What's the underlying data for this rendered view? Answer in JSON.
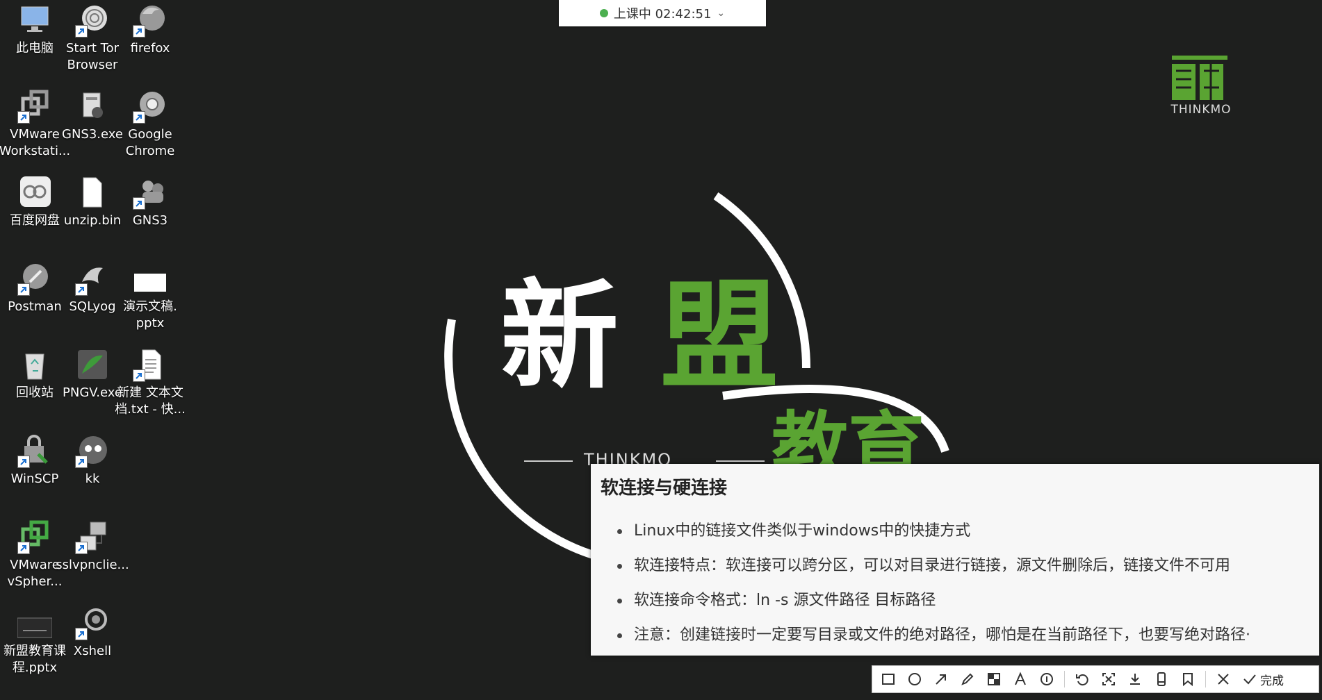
{
  "status_pill": {
    "text": "上课中 02:42:51"
  },
  "desktop_icons": [
    {
      "label": "此电脑",
      "icon": "computer-icon"
    },
    {
      "label": "Start Tor\nBrowser",
      "icon": "tor-icon"
    },
    {
      "label": "firefox",
      "icon": "firefox-icon"
    },
    {
      "label": "VMware\nWorkstati...",
      "icon": "vmware-icon"
    },
    {
      "label": "GNS3.exe",
      "icon": "installer-icon"
    },
    {
      "label": "Google\nChrome",
      "icon": "chrome-icon"
    },
    {
      "label": "百度网盘",
      "icon": "cloud-drive-icon"
    },
    {
      "label": "unzip.bin",
      "icon": "file-icon"
    },
    {
      "label": "GNS3",
      "icon": "gns3-icon"
    },
    {
      "label": "Postman",
      "icon": "postman-icon"
    },
    {
      "label": "SQLyog",
      "icon": "sqlyog-icon"
    },
    {
      "label": "演示文稿.\npptx",
      "icon": "pptx-icon"
    },
    {
      "label": "回收站",
      "icon": "recycle-bin-icon"
    },
    {
      "label": "PNGV.exe",
      "icon": "png-icon"
    },
    {
      "label": "新建 文本文\n档.txt - 快...",
      "icon": "text-file-icon"
    },
    {
      "label": "WinSCP",
      "icon": "winscp-icon"
    },
    {
      "label": "kk",
      "icon": "kk-icon"
    },
    {
      "label": "VMware\nvSpher...",
      "icon": "vsphere-icon"
    },
    {
      "label": "sslvpnclie...",
      "icon": "vpn-icon"
    },
    {
      "label": "新盟教育课\n程.pptx",
      "icon": "pptx-thumb-icon"
    },
    {
      "label": "Xshell",
      "icon": "xshell-icon"
    }
  ],
  "logo_small": {
    "text": "THINKMO"
  },
  "big_logo": {
    "char1": "新",
    "char2": "盟",
    "char3": "教育",
    "brand": "THINKMO"
  },
  "slide": {
    "title": "软连接与硬连接",
    "bullets": [
      "Linux中的链接文件类似于windows中的快捷方式",
      "软连接特点：软连接可以跨分区，可以对目录进行链接，源文件删除后，链接文件不可用",
      "软连接命令格式：ln -s 源文件路径  目标路径",
      "注意：创建链接时一定要写目录或文件的绝对路径，哪怕是在当前路径下，也要写绝对路径·"
    ]
  },
  "toolbar": {
    "tools": [
      "rectangle-icon",
      "ellipse-icon",
      "arrow-icon",
      "pen-icon",
      "mosaic-icon",
      "text-icon",
      "number-icon",
      "undo-icon",
      "pin-icon",
      "save-icon",
      "phone-icon",
      "bookmark-icon"
    ],
    "cancel_icon": "close-icon",
    "done_label": "完成"
  },
  "colors": {
    "accent_green": "#5aa432",
    "background": "#1e1f1e",
    "panel": "#f7f7f7"
  }
}
